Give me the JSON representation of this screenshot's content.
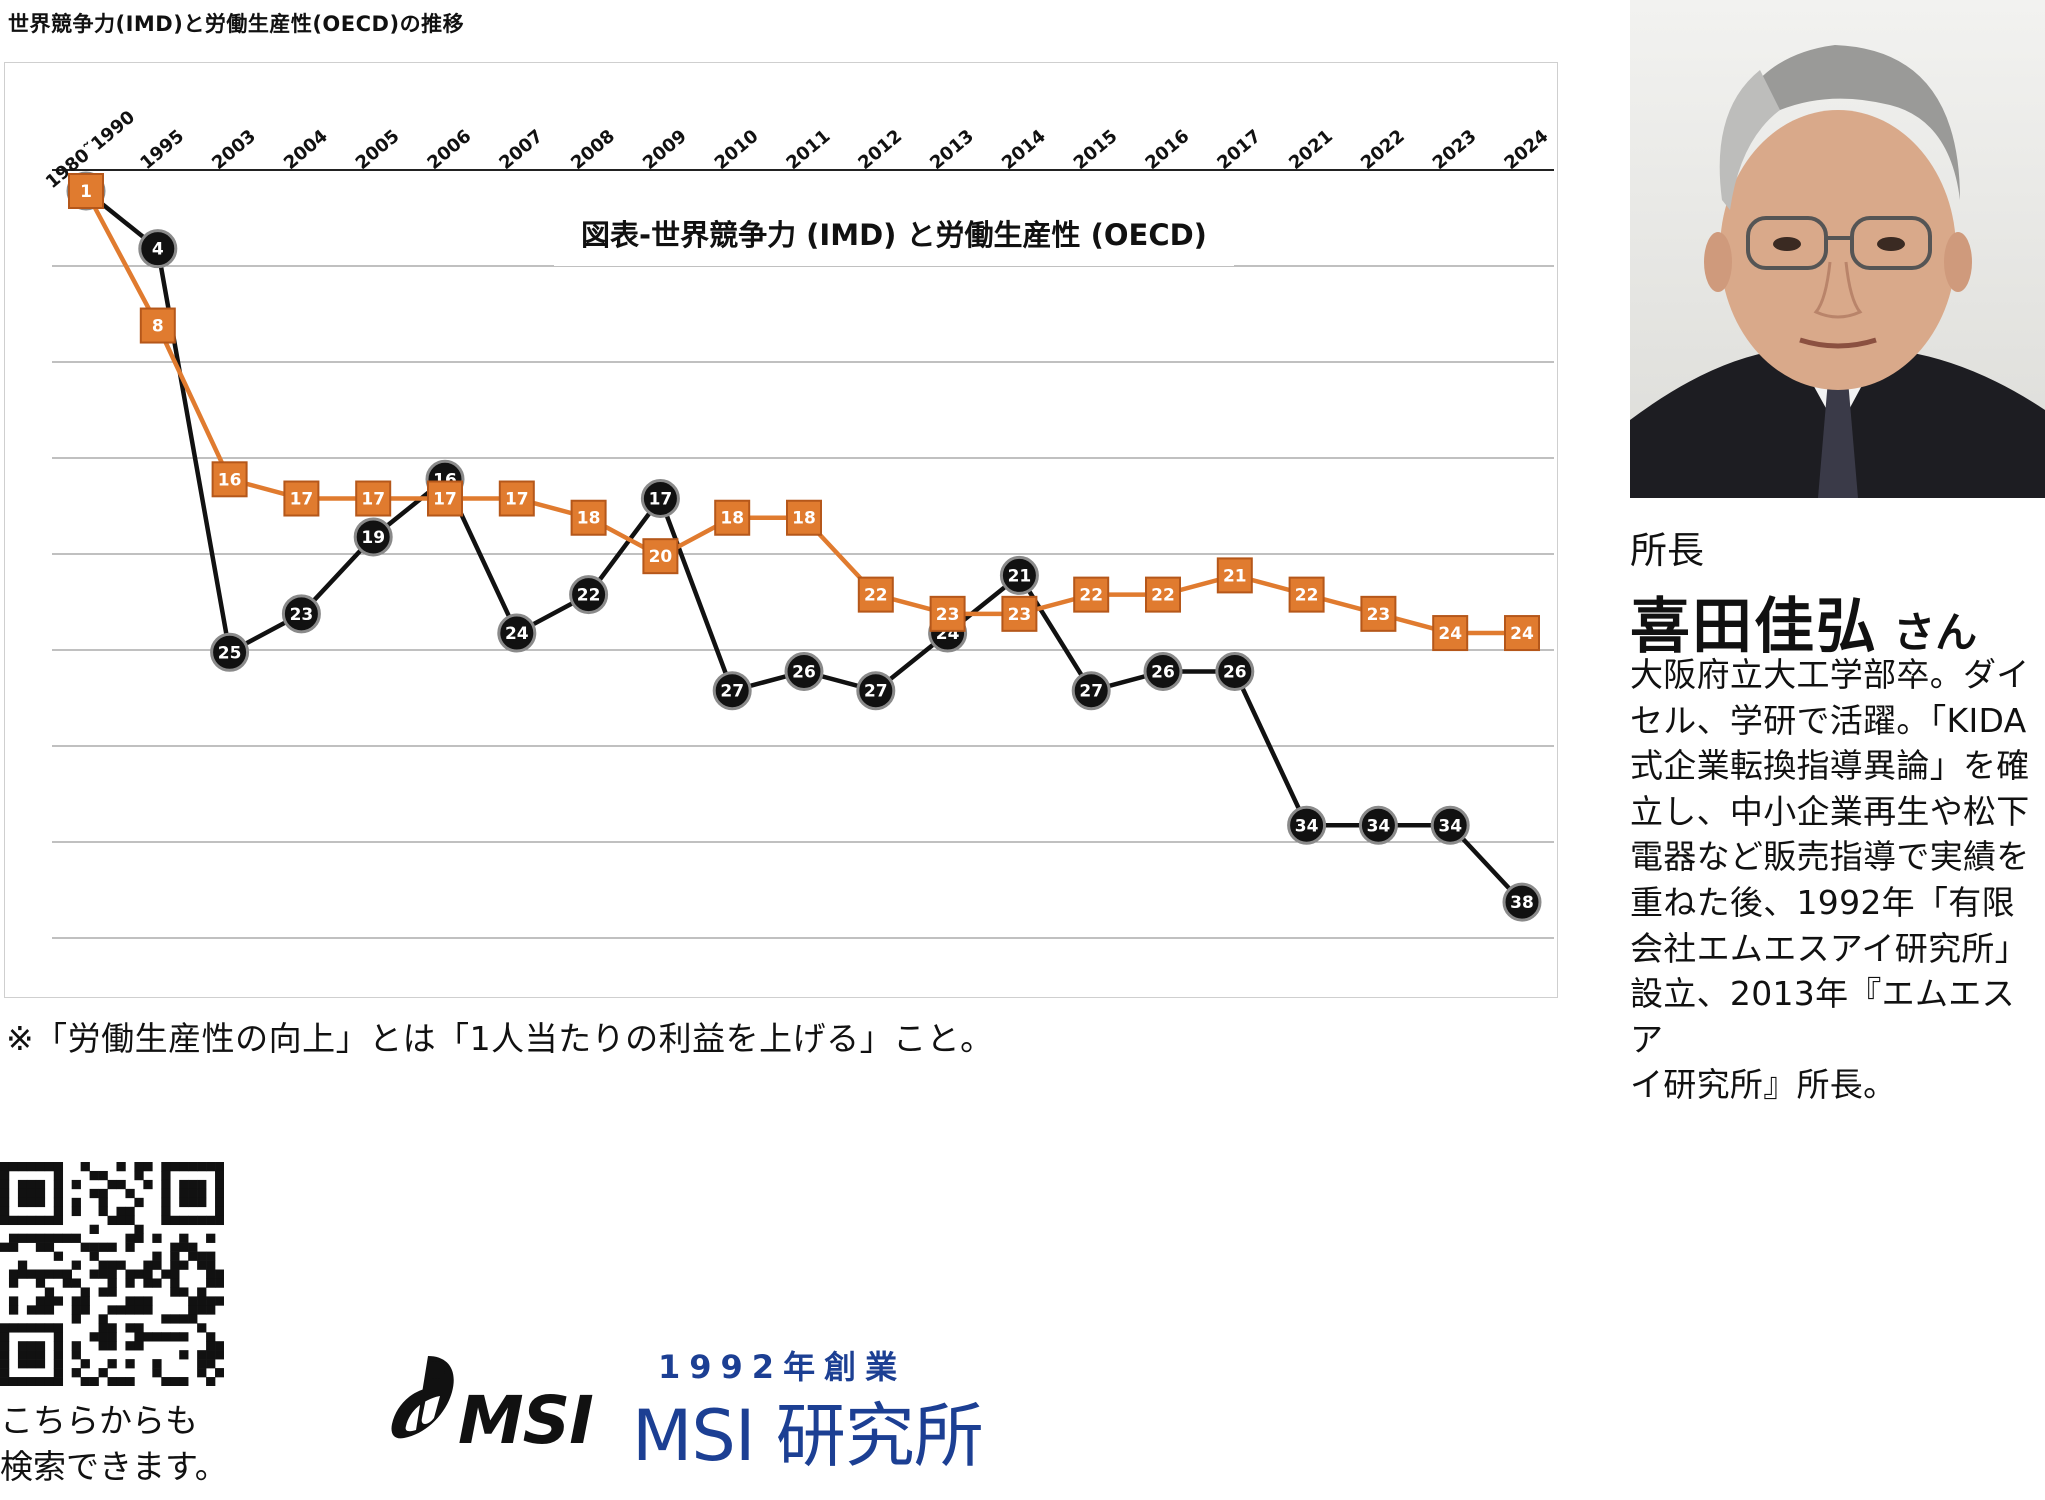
{
  "caption": "世界競争力(IMD)と労働生産性(OECD)の推移",
  "chart_data": {
    "type": "line",
    "title": "図表-世界競争力 (IMD) と労働生産性 (OECD)",
    "categories": [
      "1980˜1990",
      "1995",
      "2003",
      "2004",
      "2005",
      "2006",
      "2007",
      "2008",
      "2009",
      "2010",
      "2011",
      "2012",
      "2013",
      "2014",
      "2015",
      "2016",
      "2017",
      "2021",
      "2022",
      "2023",
      "2024"
    ],
    "series": [
      {
        "values": [
          1,
          4,
          25,
          23,
          19,
          16,
          24,
          22,
          17,
          27,
          26,
          27,
          24,
          21,
          27,
          26,
          26,
          34,
          34,
          34,
          38
        ],
        "color": "#111111",
        "marker": "circle"
      },
      {
        "values": [
          1,
          8,
          16,
          17,
          17,
          17,
          17,
          18,
          20,
          18,
          18,
          22,
          23,
          23,
          22,
          22,
          21,
          22,
          23,
          24,
          24
        ],
        "color": "#e07b2f",
        "marker": "square"
      }
    ],
    "yaxis": {
      "reversed": true,
      "tick_labels_shown": false
    },
    "xaxis_position": "top",
    "grid": true,
    "legend": "none"
  },
  "footnote": "※「労働生産性の向上」とは「1人当たりの利益を上げる」こと。",
  "profile": {
    "role": "所長",
    "name": "喜田佳弘",
    "honorific": "さん",
    "bio_lines": [
      "大阪府立大工学部卒。ダイ",
      "セル、学研で活躍。「KIDA",
      "式企業転換指導異論」を確",
      "立し、中小企業再生や松下",
      "電器など販売指導で実績を",
      "重ねた後、1992年「有限",
      "会社エムエスアイ研究所」",
      "設立、2013年『エムエスア",
      "イ研究所』所長。"
    ]
  },
  "qr_caption": [
    "こちらからも",
    "検索できます。"
  ],
  "logo": {
    "mark_text": "MSI",
    "founded": "1992年創業",
    "name": "MSI 研究所"
  }
}
